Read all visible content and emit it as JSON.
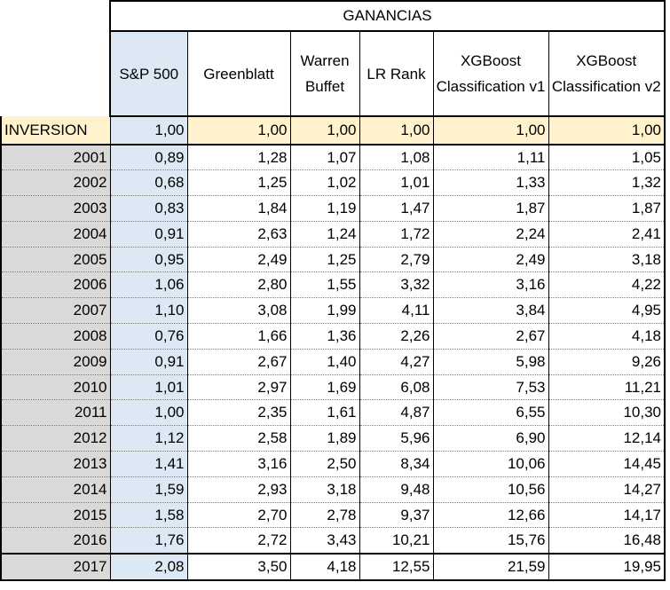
{
  "title": "GANANCIAS",
  "columns": [
    "S&P 500",
    "Greenblatt",
    "Warren Buffet",
    "LR Rank",
    "XGBoost Classification v1",
    "XGBoost Classification v2"
  ],
  "rows": [
    {
      "label": "INVERSION",
      "values": [
        "1,00",
        "1,00",
        "1,00",
        "1,00",
        "1,00",
        "1,00"
      ]
    },
    {
      "label": "2001",
      "values": [
        "0,89",
        "1,28",
        "1,07",
        "1,08",
        "1,11",
        "1,05"
      ]
    },
    {
      "label": "2002",
      "values": [
        "0,68",
        "1,25",
        "1,02",
        "1,01",
        "1,33",
        "1,32"
      ]
    },
    {
      "label": "2003",
      "values": [
        "0,83",
        "1,84",
        "1,19",
        "1,47",
        "1,87",
        "1,87"
      ]
    },
    {
      "label": "2004",
      "values": [
        "0,91",
        "2,63",
        "1,24",
        "1,72",
        "2,24",
        "2,41"
      ]
    },
    {
      "label": "2005",
      "values": [
        "0,95",
        "2,49",
        "1,25",
        "2,79",
        "2,49",
        "3,18"
      ]
    },
    {
      "label": "2006",
      "values": [
        "1,06",
        "2,80",
        "1,55",
        "3,32",
        "3,16",
        "4,22"
      ]
    },
    {
      "label": "2007",
      "values": [
        "1,10",
        "3,08",
        "1,99",
        "4,11",
        "3,84",
        "4,95"
      ]
    },
    {
      "label": "2008",
      "values": [
        "0,76",
        "1,66",
        "1,36",
        "2,26",
        "2,67",
        "4,18"
      ]
    },
    {
      "label": "2009",
      "values": [
        "0,91",
        "2,67",
        "1,40",
        "4,27",
        "5,98",
        "9,26"
      ]
    },
    {
      "label": "2010",
      "values": [
        "1,01",
        "2,97",
        "1,69",
        "6,08",
        "7,53",
        "11,21"
      ]
    },
    {
      "label": "2011",
      "values": [
        "1,00",
        "2,35",
        "1,61",
        "4,87",
        "6,55",
        "10,30"
      ]
    },
    {
      "label": "2012",
      "values": [
        "1,12",
        "2,58",
        "1,89",
        "5,96",
        "6,90",
        "12,14"
      ]
    },
    {
      "label": "2013",
      "values": [
        "1,41",
        "3,16",
        "2,50",
        "8,34",
        "10,06",
        "14,45"
      ]
    },
    {
      "label": "2014",
      "values": [
        "1,59",
        "2,93",
        "3,18",
        "9,48",
        "10,56",
        "14,27"
      ]
    },
    {
      "label": "2015",
      "values": [
        "1,58",
        "2,70",
        "2,78",
        "9,37",
        "12,66",
        "14,17"
      ]
    },
    {
      "label": "2016",
      "values": [
        "1,76",
        "2,72",
        "3,43",
        "10,21",
        "15,76",
        "16,48"
      ]
    },
    {
      "label": "2017",
      "values": [
        "2,08",
        "3,50",
        "4,18",
        "12,55",
        "21,59",
        "19,95"
      ]
    }
  ]
}
